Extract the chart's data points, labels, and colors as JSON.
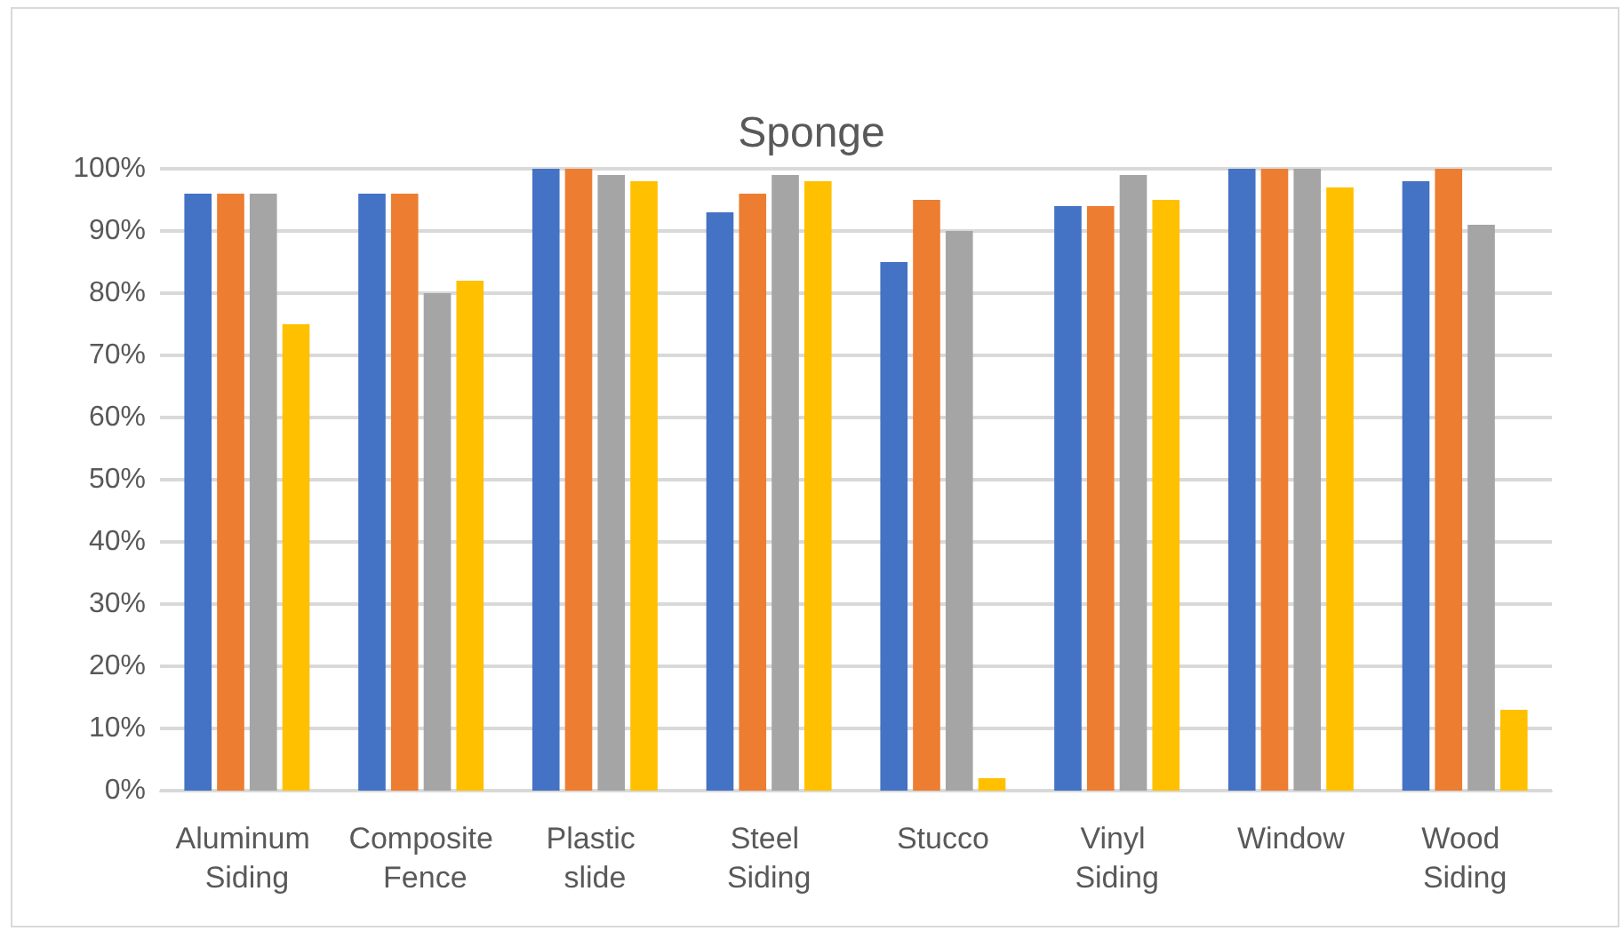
{
  "chart_data": {
    "type": "bar",
    "title": "Sponge",
    "categories": [
      "Aluminum Siding",
      "Composite Fence",
      "Plastic slide",
      "Steel Siding",
      "Stucco",
      "Vinyl Siding",
      "Window",
      "Wood Siding"
    ],
    "series": [
      {
        "color": "#4472c4",
        "values": [
          96,
          96,
          100,
          93,
          85,
          94,
          100,
          98
        ]
      },
      {
        "color": "#ed7d31",
        "values": [
          96,
          96,
          100,
          96,
          95,
          94,
          100,
          100
        ]
      },
      {
        "color": "#a5a5a5",
        "values": [
          96,
          80,
          99,
          99,
          90,
          99,
          100,
          91
        ]
      },
      {
        "color": "#ffc000",
        "values": [
          75,
          82,
          98,
          98,
          2,
          95,
          97,
          13
        ]
      }
    ],
    "ylim": [
      0,
      100
    ],
    "yticks": [
      {
        "value": 0,
        "label": "0%"
      },
      {
        "value": 10,
        "label": "10%"
      },
      {
        "value": 20,
        "label": "20%"
      },
      {
        "value": 30,
        "label": "30%"
      },
      {
        "value": 40,
        "label": "40%"
      },
      {
        "value": 50,
        "label": "50%"
      },
      {
        "value": 60,
        "label": "60%"
      },
      {
        "value": 70,
        "label": "70%"
      },
      {
        "value": 80,
        "label": "80%"
      },
      {
        "value": 90,
        "label": "90%"
      },
      {
        "value": 100,
        "label": "100%"
      }
    ],
    "grid": "y"
  }
}
